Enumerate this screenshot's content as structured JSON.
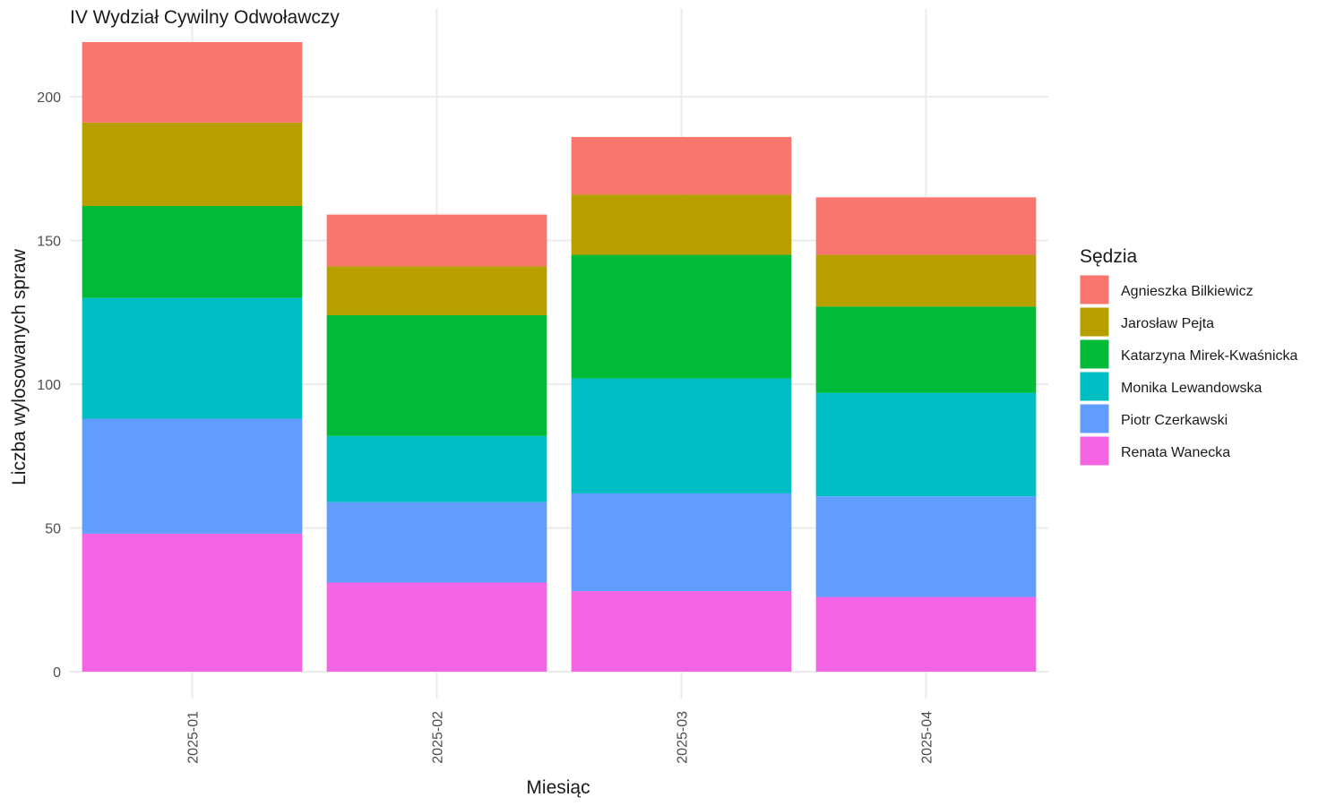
{
  "chart_data": {
    "type": "bar",
    "stacked": true,
    "title": "IV Wydział Cywilny Odwoławczy",
    "xlabel": "Miesiąc",
    "ylabel": "Liczba wylosowanych spraw",
    "categories": [
      "2025-01",
      "2025-02",
      "2025-03",
      "2025-04"
    ],
    "ylim": [
      0,
      225
    ],
    "yticks": [
      0,
      50,
      100,
      150,
      200
    ],
    "grid": true,
    "legend": {
      "title": "Sędzia",
      "position": "right"
    },
    "series": [
      {
        "name": "Renata Wanecka",
        "color": "#F564E3",
        "values": [
          48,
          31,
          28,
          26
        ]
      },
      {
        "name": "Piotr Czerkawski",
        "color": "#619CFF",
        "values": [
          40,
          28,
          34,
          35
        ]
      },
      {
        "name": "Monika Lewandowska",
        "color": "#00BFC4",
        "values": [
          42,
          23,
          40,
          36
        ]
      },
      {
        "name": "Katarzyna Mirek-Kwaśnicka",
        "color": "#00BA38",
        "values": [
          32,
          42,
          43,
          30
        ]
      },
      {
        "name": "Jarosław Pejta",
        "color": "#B79F00",
        "values": [
          29,
          17,
          21,
          18
        ]
      },
      {
        "name": "Agnieszka Bilkiewicz",
        "color": "#F8766D",
        "values": [
          28,
          18,
          20,
          20
        ]
      }
    ],
    "legend_order": [
      "Agnieszka Bilkiewicz",
      "Jarosław Pejta",
      "Katarzyna Mirek-Kwaśnicka",
      "Monika Lewandowska",
      "Piotr Czerkawski",
      "Renata Wanecka"
    ]
  }
}
